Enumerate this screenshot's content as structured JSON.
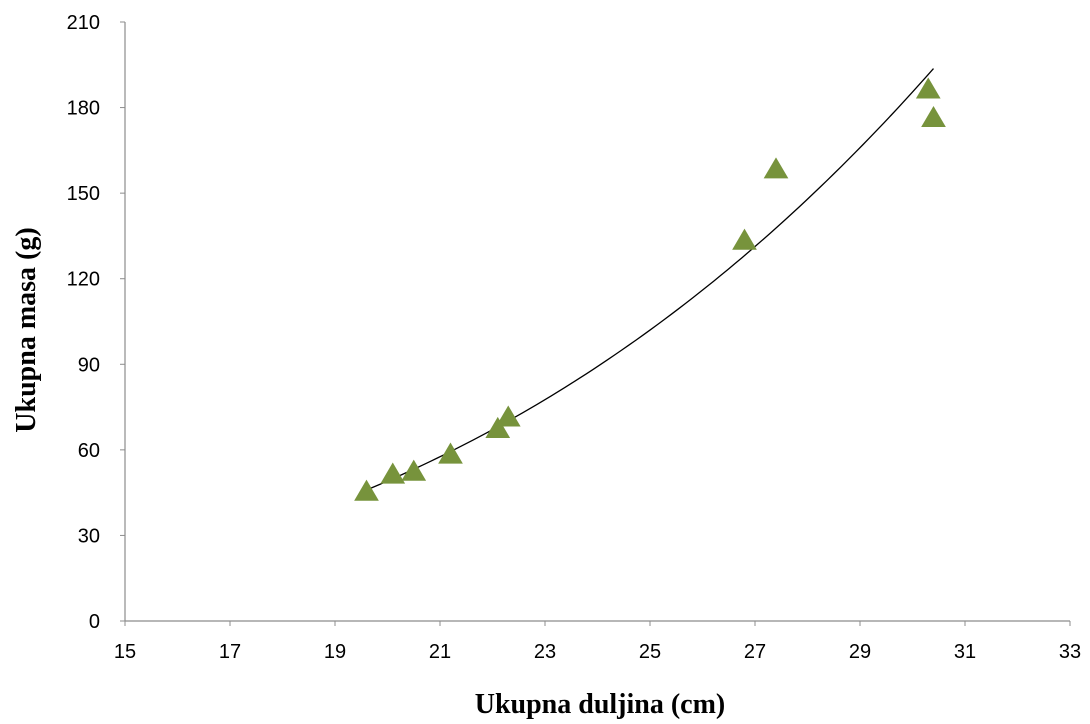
{
  "chart_data": {
    "type": "scatter",
    "title": "",
    "xlabel": "Ukupna duljina (cm)",
    "ylabel": "Ukupna masa (g)",
    "xlim": [
      15,
      33
    ],
    "ylim": [
      0,
      210
    ],
    "xticks": [
      15,
      17,
      19,
      21,
      23,
      25,
      27,
      29,
      31,
      33
    ],
    "yticks": [
      0,
      30,
      60,
      90,
      120,
      150,
      180,
      210
    ],
    "grid": false,
    "legend": "none",
    "marker": "triangle",
    "marker_color": "#77933c",
    "trendline": {
      "type": "power",
      "x_range": [
        19.6,
        30.4
      ],
      "color": "#000000"
    },
    "points": [
      {
        "x": 19.6,
        "y": 45
      },
      {
        "x": 20.1,
        "y": 51
      },
      {
        "x": 20.5,
        "y": 52
      },
      {
        "x": 21.2,
        "y": 58
      },
      {
        "x": 22.1,
        "y": 67
      },
      {
        "x": 22.3,
        "y": 71
      },
      {
        "x": 26.8,
        "y": 133
      },
      {
        "x": 27.4,
        "y": 158
      },
      {
        "x": 30.3,
        "y": 186
      },
      {
        "x": 30.4,
        "y": 176
      }
    ]
  }
}
